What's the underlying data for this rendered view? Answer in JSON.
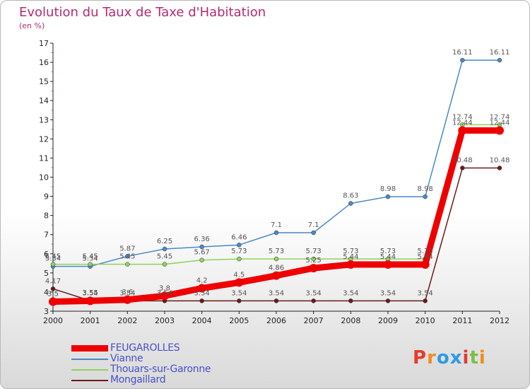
{
  "header": {
    "title": "Evolution du Taux de Taxe d'Habitation",
    "unit": "(en %)"
  },
  "logo": {
    "text": "Proxiti",
    "colors": [
      "#e63b2e",
      "#f28c1b",
      "#2e9ae6",
      "#2e9ae6",
      "#e63b2e",
      "#7ac143",
      "#f28c1b"
    ]
  },
  "chart_data": {
    "type": "line",
    "title": "Evolution du Taux de Taxe d'Habitation",
    "ylabel": "(en %)",
    "xlabel": "",
    "ylim": [
      3,
      17
    ],
    "yticks": [
      3,
      4,
      5,
      6,
      7,
      8,
      9,
      10,
      11,
      12,
      13,
      14,
      15,
      16,
      17
    ],
    "x": [
      "2000",
      "2001",
      "2002",
      "2003",
      "2004",
      "2005",
      "2006",
      "2007",
      "2008",
      "2009",
      "2010",
      "2011",
      "2012"
    ],
    "series": [
      {
        "name": "FEUGAROLLES",
        "color": "#ee0000",
        "values": [
          3.5,
          3.54,
          3.6,
          3.8,
          4.2,
          4.5,
          4.86,
          5.25,
          5.44,
          5.44,
          5.44,
          12.44,
          12.44
        ],
        "labels": [
          "3.5",
          "3.54",
          "3.6",
          "3.8",
          "4.2",
          "4.5",
          "4.86",
          "5.25",
          "5.44",
          "5.44",
          "5.44",
          "12.44",
          "12.44"
        ]
      },
      {
        "name": "Vianne",
        "color": "#4a88c8",
        "values": [
          5.34,
          5.34,
          5.87,
          6.25,
          6.36,
          6.46,
          7.1,
          7.1,
          8.63,
          8.98,
          8.98,
          16.11,
          16.11
        ],
        "labels": [
          "5.34",
          "5.34",
          "5.87",
          "6.25",
          "6.36",
          "6.46",
          "7.1",
          "7.1",
          "8.63",
          "8.98",
          "8.98",
          "16.11",
          "16.11"
        ]
      },
      {
        "name": "Thouars-sur-Garonne",
        "color": "#8fd15e",
        "values": [
          5.45,
          5.45,
          5.45,
          5.45,
          5.67,
          5.73,
          5.73,
          5.73,
          5.73,
          5.73,
          5.73,
          12.74,
          12.74
        ],
        "labels": [
          "5.45",
          "5.45",
          "5.45",
          "5.45",
          "5.67",
          "5.73",
          "5.73",
          "5.73",
          "5.73",
          "5.73",
          "5.73",
          "12.74",
          "12.74"
        ]
      },
      {
        "name": "Mongaillard",
        "color": "#6b1a1a",
        "values": [
          4.17,
          3.55,
          3.54,
          3.54,
          3.54,
          3.54,
          3.54,
          3.54,
          3.54,
          3.54,
          3.54,
          10.48,
          10.48
        ],
        "labels": [
          "4.17",
          "3.55",
          "3.54",
          "3.54",
          "3.54",
          "3.54",
          "3.54",
          "3.54",
          "3.54",
          "3.54",
          "3.54",
          "10.48",
          "10.48"
        ]
      }
    ]
  }
}
